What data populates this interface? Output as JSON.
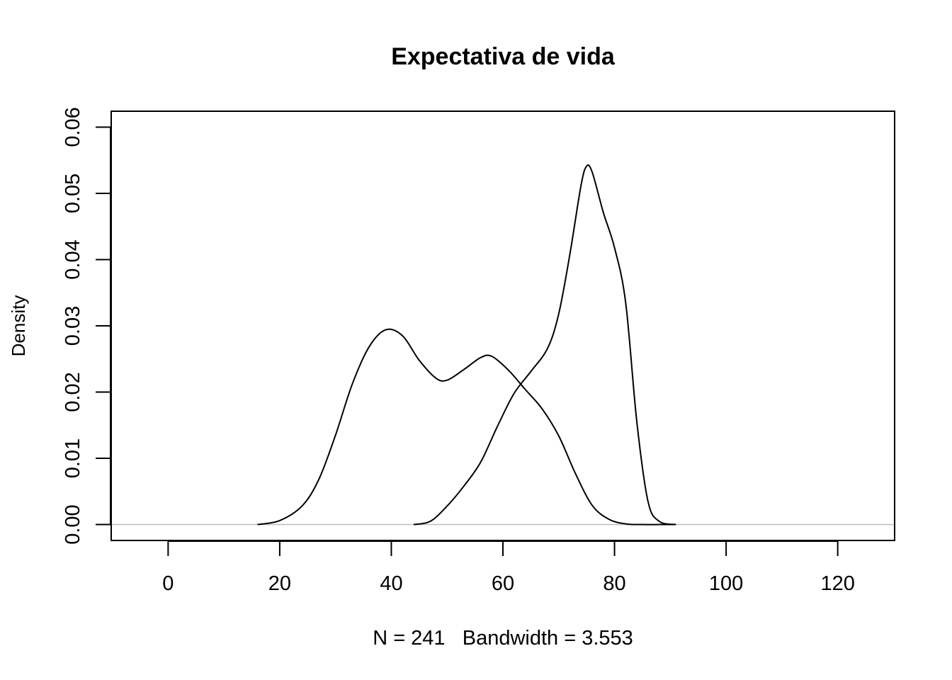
{
  "chart_data": {
    "type": "line",
    "title": "Expectativa de vida",
    "xlabel": "N = 241   Bandwidth = 3.553",
    "ylabel": "Density",
    "xlim": [
      -5,
      125
    ],
    "ylim": [
      0,
      0.06
    ],
    "x_ticks": [
      {
        "value": 0,
        "label": "0"
      },
      {
        "value": 20,
        "label": "20"
      },
      {
        "value": 40,
        "label": "40"
      },
      {
        "value": 60,
        "label": "60"
      },
      {
        "value": 80,
        "label": "80"
      },
      {
        "value": 100,
        "label": "100"
      },
      {
        "value": 120,
        "label": "120"
      }
    ],
    "y_ticks": [
      {
        "value": 0.0,
        "label": "0.00"
      },
      {
        "value": 0.01,
        "label": "0.01"
      },
      {
        "value": 0.02,
        "label": "0.02"
      },
      {
        "value": 0.03,
        "label": "0.03"
      },
      {
        "value": 0.04,
        "label": "0.04"
      },
      {
        "value": 0.05,
        "label": "0.05"
      },
      {
        "value": 0.06,
        "label": "0.06"
      }
    ],
    "baseline": {
      "y": 0,
      "color": "#bebebe"
    },
    "grid": false,
    "legend": "none",
    "line_color": "#000000",
    "series": [
      {
        "x": [
          16,
          20,
          24,
          27,
          30,
          33,
          36,
          39,
          42,
          45,
          48,
          50,
          53,
          56,
          58,
          61,
          64,
          67,
          70,
          73,
          76,
          79,
          82,
          85,
          88,
          91
        ],
        "y": [
          0.0,
          0.0006,
          0.0028,
          0.0068,
          0.0135,
          0.0212,
          0.0268,
          0.0294,
          0.0285,
          0.0248,
          0.0221,
          0.0218,
          0.0234,
          0.0252,
          0.0254,
          0.0233,
          0.0204,
          0.0175,
          0.0134,
          0.0077,
          0.0029,
          0.0008,
          0.0001,
          0.0,
          0.0,
          0.0
        ]
      },
      {
        "x": [
          44,
          47,
          50,
          53,
          56,
          59,
          62,
          65,
          68,
          70,
          72,
          74,
          75,
          76,
          78,
          80,
          82,
          84,
          86,
          88,
          91
        ],
        "y": [
          0.0,
          0.0005,
          0.0028,
          0.0058,
          0.0094,
          0.0148,
          0.0198,
          0.0231,
          0.0266,
          0.0318,
          0.0408,
          0.0512,
          0.0541,
          0.0532,
          0.0471,
          0.0418,
          0.0335,
          0.0155,
          0.0035,
          0.0005,
          0.0
        ]
      }
    ]
  }
}
